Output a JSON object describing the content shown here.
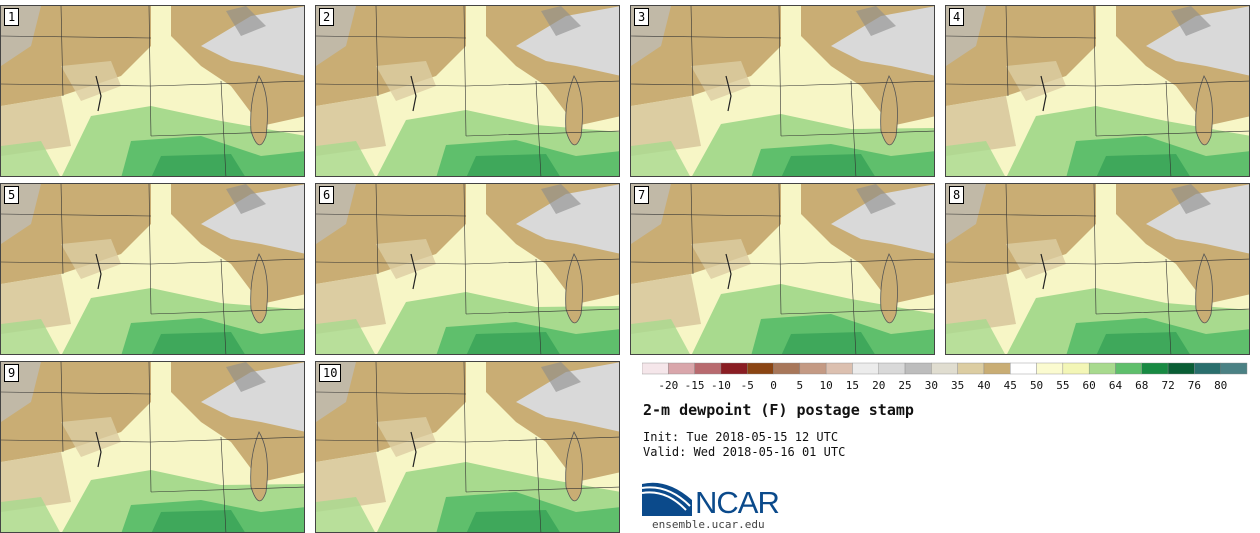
{
  "panels": [
    {
      "label": "1"
    },
    {
      "label": "2"
    },
    {
      "label": "3"
    },
    {
      "label": "4"
    },
    {
      "label": "5"
    },
    {
      "label": "6"
    },
    {
      "label": "7"
    },
    {
      "label": "8"
    },
    {
      "label": "9"
    },
    {
      "label": "10"
    }
  ],
  "colorbar": {
    "ticks": [
      "-20",
      "-15",
      "-10",
      "-5",
      "0",
      "5",
      "10",
      "15",
      "20",
      "25",
      "30",
      "35",
      "40",
      "45",
      "50",
      "55",
      "60",
      "64",
      "68",
      "72",
      "76",
      "80"
    ],
    "colors": [
      "#f5e6ea",
      "#d9a6ab",
      "#b86a6f",
      "#8a1e24",
      "#8b4513",
      "#a8775a",
      "#c49a84",
      "#dcc0b0",
      "#ececec",
      "#d9d9d9",
      "#bdbdbd",
      "#e0ddd0",
      "#dccda2",
      "#c9ad74",
      "#ffffff",
      "#fbfbd0",
      "#f3f6b6",
      "#a8da8e",
      "#5fbf6c",
      "#188a43",
      "#0a5e35",
      "#2a6f6d",
      "#4b8184"
    ]
  },
  "title": "2-m dewpoint (F) postage stamp",
  "init": "Init: Tue 2018-05-15 12 UTC",
  "valid": "Valid: Wed 2018-05-16 01 UTC",
  "logo": {
    "name": "NCAR",
    "url": "ensemble.ucar.edu"
  }
}
